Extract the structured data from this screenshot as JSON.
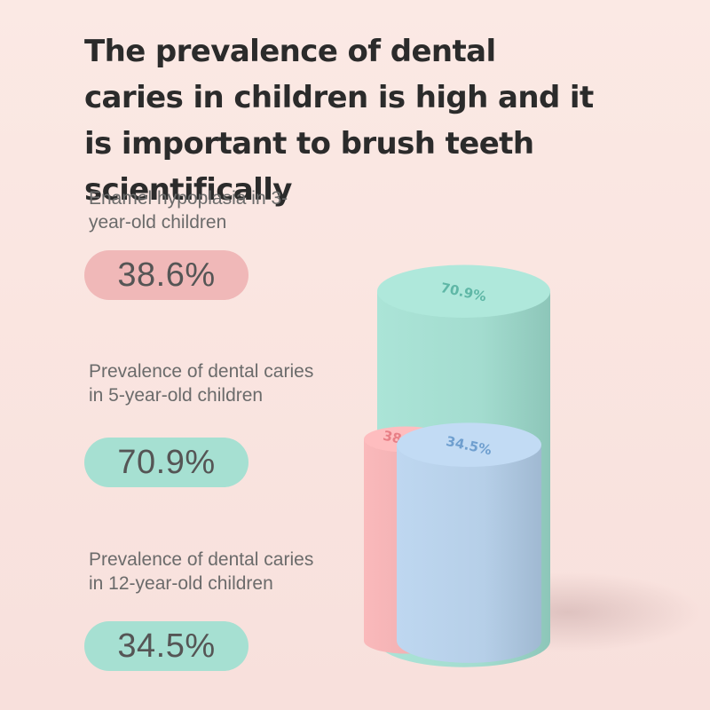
{
  "title": "The prevalence of dental caries in children is high and it is important to brush teeth scientifically",
  "stats": [
    {
      "label": "Enamel hypoplasia in 3-year-old children",
      "value": "38.6%"
    },
    {
      "label": "Prevalence of dental caries in 5-year-old children",
      "value": "70.9%"
    },
    {
      "label": "Prevalence of dental caries in 12-year-old children",
      "value": "34.5%"
    }
  ],
  "colors": {
    "pink": "#f2b1b3",
    "teal": "#a3dccf",
    "blue": "#b6cfe8",
    "pink_label": "#e87f86",
    "teal_label": "#5fb7a6",
    "blue_label": "#6f9fcf"
  },
  "chart_data": {
    "type": "bar",
    "style": "3d-cylinder-segments",
    "categories": [
      "Enamel hypoplasia in 3-year-old children",
      "Prevalence of dental caries in 5-year-old children",
      "Prevalence of dental caries in 12-year-old children"
    ],
    "values": [
      38.6,
      70.9,
      34.5
    ],
    "data_labels": [
      "38.6%",
      "70.9%",
      "34.5%"
    ],
    "title": "The prevalence of dental caries in children is high and it is important to brush teeth scientifically",
    "xlabel": "",
    "ylabel": "",
    "ylim": [
      0,
      100
    ],
    "grid": false,
    "legend": "none"
  }
}
